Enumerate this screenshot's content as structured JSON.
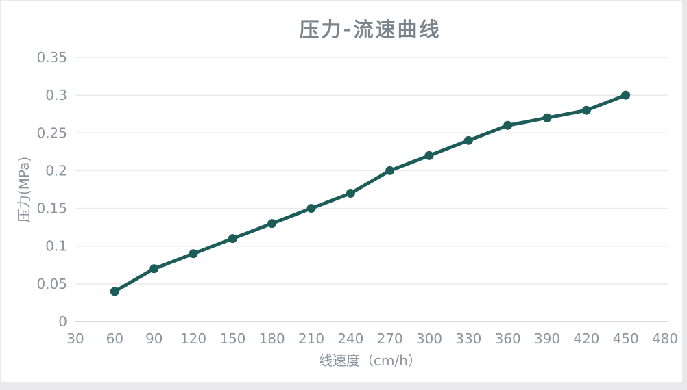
{
  "page": {
    "background_color": "#e9e9ec",
    "card_color": "#ffffff",
    "border_color": "#e3e3e7"
  },
  "chart_data": {
    "type": "line",
    "title": "压力-流速曲线",
    "xlabel": "线速度（cm/h）",
    "ylabel": "压力(MPa)",
    "x": [
      60,
      90,
      120,
      150,
      180,
      210,
      240,
      270,
      300,
      330,
      360,
      390,
      420,
      450
    ],
    "values": [
      0.04,
      0.07,
      0.09,
      0.11,
      0.13,
      0.15,
      0.17,
      0.2,
      0.22,
      0.24,
      0.26,
      0.27,
      0.28,
      0.3
    ],
    "x_ticks": [
      "30",
      "60",
      "90",
      "120",
      "150",
      "180",
      "210",
      "240",
      "270",
      "300",
      "330",
      "360",
      "390",
      "420",
      "450",
      "480"
    ],
    "y_ticks": [
      "0",
      "0.05",
      "0.1",
      "0.15",
      "0.2",
      "0.25",
      "0.3",
      "0.35"
    ],
    "xlim": [
      30,
      480
    ],
    "ylim": [
      0,
      0.35
    ],
    "grid": true,
    "legend": false,
    "colors": {
      "line": "#1c5c59",
      "marker": "#1c5c59",
      "grid": "#eaeaea",
      "zero_line": "#d8d8d8",
      "labels": "#8b949c",
      "title": "#7b858d"
    }
  }
}
